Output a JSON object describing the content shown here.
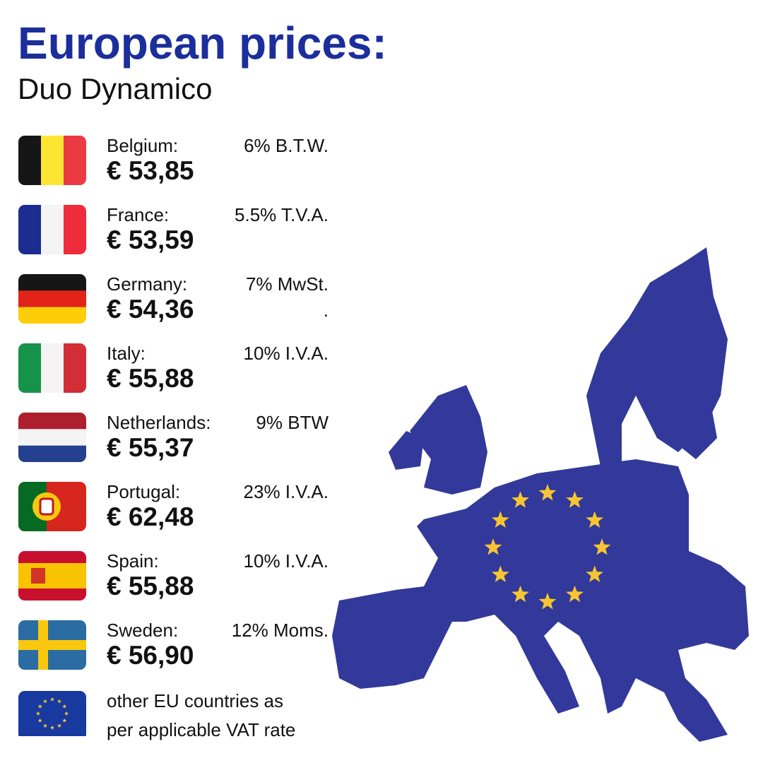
{
  "header": {
    "title": "European prices:",
    "subtitle": "Duo Dynamico"
  },
  "countries": [
    {
      "name": "Belgium:",
      "vat": "6% B.T.W.",
      "price": "€ 53,85"
    },
    {
      "name": "France:",
      "vat": "5.5% T.V.A.",
      "price": "€ 53,59"
    },
    {
      "name": "Germany:",
      "vat": "7% MwSt.",
      "vat_extra": ".",
      "price": "€ 54,36"
    },
    {
      "name": "Italy:",
      "vat": "10% I.V.A.",
      "price": "€ 55,88"
    },
    {
      "name": "Netherlands:",
      "vat": "9% BTW",
      "price": "€ 55,37"
    },
    {
      "name": "Portugal:",
      "vat": "23% I.V.A.",
      "price": "€ 62,48"
    },
    {
      "name": "Spain:",
      "vat": "10% I.V.A.",
      "price": "€ 55,88"
    },
    {
      "name": "Sweden:",
      "vat": "12% Moms.",
      "price": "€ 56,90"
    }
  ],
  "footer": {
    "lines": [
      "other EU countries as",
      "per applicable VAT rate"
    ]
  }
}
